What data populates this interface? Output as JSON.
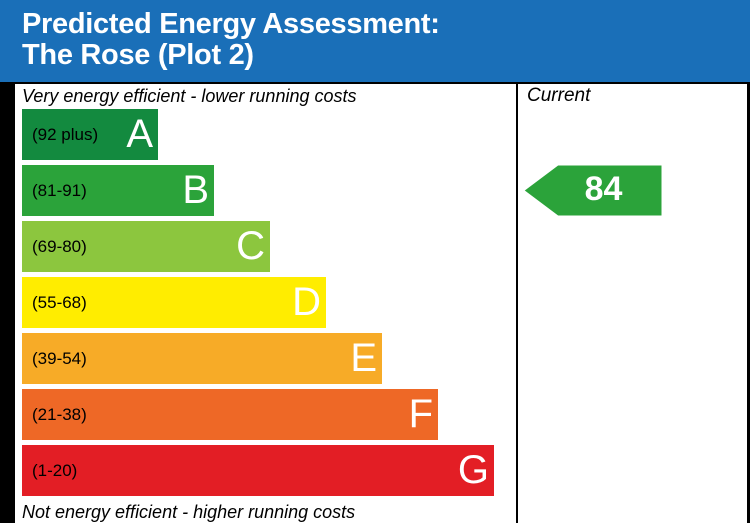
{
  "header": {
    "title_line1": "Predicted Energy Assessment:",
    "title_line2": "The Rose (Plot 2)",
    "background": "#1a6fb8"
  },
  "captions": {
    "top": "Very energy efficient - lower running costs",
    "bottom": "Not energy efficient - higher running costs"
  },
  "chart_data": {
    "type": "bar",
    "categories": [
      "A",
      "B",
      "C",
      "D",
      "E",
      "F",
      "G"
    ],
    "bands": [
      {
        "letter": "A",
        "range": "(92 plus)",
        "min": 92,
        "max": 100,
        "color": "#138a3f"
      },
      {
        "letter": "B",
        "range": "(81-91)",
        "min": 81,
        "max": 91,
        "color": "#2ba33a"
      },
      {
        "letter": "C",
        "range": "(69-80)",
        "min": 69,
        "max": 80,
        "color": "#8cc63e"
      },
      {
        "letter": "D",
        "range": "(55-68)",
        "min": 55,
        "max": 68,
        "color": "#ffed00"
      },
      {
        "letter": "E",
        "range": "(39-54)",
        "min": 39,
        "max": 54,
        "color": "#f7ab27"
      },
      {
        "letter": "F",
        "range": "(21-38)",
        "min": 21,
        "max": 38,
        "color": "#ee6826"
      },
      {
        "letter": "G",
        "range": "(1-20)",
        "min": 1,
        "max": 20,
        "color": "#e31e25"
      }
    ],
    "current": {
      "label": "Current",
      "value": 84,
      "value_text": "84",
      "band": "B",
      "color": "#2ba33a"
    }
  }
}
